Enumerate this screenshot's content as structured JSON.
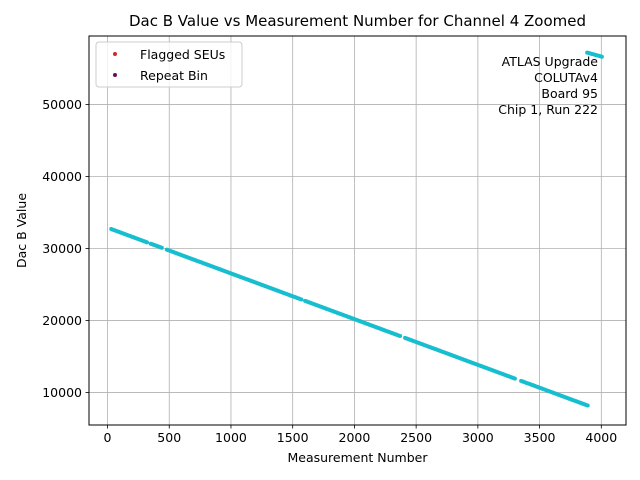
{
  "chart_data": {
    "type": "scatter",
    "title": "Dac B Value vs Measurement Number for Channel 4 Zoomed",
    "xlabel": "Measurement Number",
    "ylabel": "Dac B Value",
    "xlim": [
      -150,
      4200
    ],
    "ylim": [
      5500,
      59500
    ],
    "xticks": [
      0,
      500,
      1000,
      1500,
      2000,
      2500,
      3000,
      3500,
      4000
    ],
    "yticks": [
      10000,
      20000,
      30000,
      40000,
      50000
    ],
    "grid": true,
    "legend": {
      "placement": "top-left",
      "entries": [
        {
          "label": "Flagged SEUs",
          "color": "#d62728"
        },
        {
          "label": "Repeat Bin",
          "color": "#6a0d60"
        }
      ]
    },
    "annotation": [
      "ATLAS Upgrade",
      "COLUTAv4",
      "Board 95",
      "Chip 1, Run 222"
    ],
    "series": [
      {
        "color": "#17becf",
        "segments": [
          {
            "x_start": 30,
            "x_end": 3890,
            "y_start": 32700,
            "y_end": 8200
          },
          {
            "x_start": 3885,
            "x_end": 4010,
            "y_start": 57200,
            "y_end": 56600
          }
        ],
        "step": 10,
        "gaps": [
          [
            330,
            345
          ],
          [
            450,
            470
          ],
          [
            1580,
            1590
          ],
          [
            2380,
            2400
          ],
          [
            3310,
            3340
          ]
        ]
      }
    ]
  }
}
